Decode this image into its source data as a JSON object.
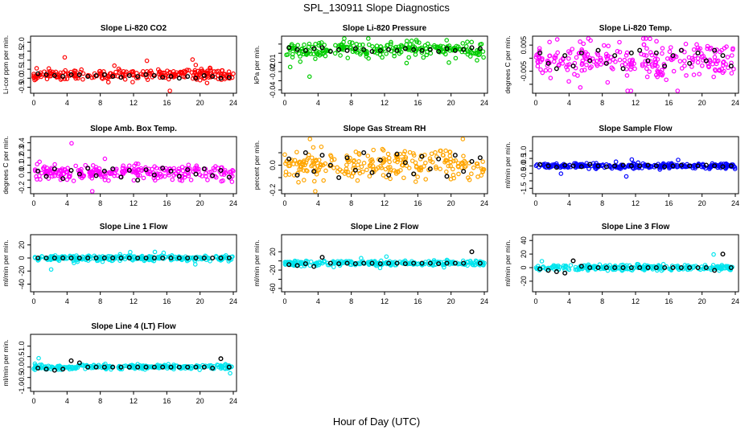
{
  "page_title": "SPL_130911  Slope Diagnostics",
  "shared_xlabel": "Hour of Day (UTC)",
  "chart_data": [
    {
      "type": "scatter",
      "title": "Slope Li-820 CO2",
      "ylabel": "Li-cor ppm per min.",
      "color": "#ff0000",
      "xlim": [
        0,
        24
      ],
      "ylim": [
        -0.7,
        2.2
      ],
      "xticks": [
        0,
        4,
        8,
        12,
        16,
        20,
        24
      ],
      "yticks": [
        -0.5,
        0.0,
        0.5,
        1.0,
        1.5,
        2.0
      ],
      "ytick_labels": [
        "-0.5",
        "0.0",
        "0.5",
        "1.0",
        "1.5",
        "2.0"
      ],
      "base": 0.2,
      "spread": 0.2,
      "black_y": [
        0.25,
        0.2,
        0.15,
        0.1,
        0.2,
        0.2,
        0.1,
        0.15,
        0.2,
        0.1,
        0.05,
        0.15,
        0.1,
        0.2,
        0.15,
        0.05,
        0.1,
        0.0,
        0.1,
        0.0,
        0.15,
        0.1,
        0.0,
        0.05
      ]
    },
    {
      "type": "scatter",
      "title": "Slope Li-820 Pressure",
      "ylabel": "kPa per min.",
      "color": "#00cc00",
      "xlim": [
        0,
        24
      ],
      "ylim": [
        -0.041,
        0.016
      ],
      "xticks": [
        0,
        4,
        8,
        12,
        16,
        20,
        24
      ],
      "yticks": [
        -0.04,
        -0.03,
        -0.02,
        -0.01,
        0.0,
        0.01
      ],
      "ytick_labels": [
        "-0.04",
        "",
        "-0.02",
        "-0.01",
        "",
        ""
      ],
      "base": 0.004,
      "spread": 0.006,
      "black_y": [
        0.006,
        0.004,
        0.003,
        0.005,
        0.006,
        0.002,
        0.004,
        0.003,
        0.005,
        0.004,
        0.002,
        0.003,
        0.004,
        0.003,
        0.005,
        0.004,
        0.003,
        0.004,
        0.002,
        0.005,
        0.003,
        0.004,
        0.006,
        0.005
      ]
    },
    {
      "type": "scatter",
      "title": "Slope Li-820 Temp.",
      "ylabel": "degrees C per min.",
      "color": "#ff00ff",
      "xlim": [
        0,
        24
      ],
      "ylim": [
        -0.0125,
        0.0075
      ],
      "xticks": [
        0,
        4,
        8,
        12,
        16,
        20,
        24
      ],
      "yticks": [
        -0.01,
        -0.005,
        0.0,
        0.005
      ],
      "ytick_labels": [
        "",
        "-0.005",
        "",
        "0.005"
      ],
      "base": -0.001,
      "spread": 0.005,
      "black_y": [
        0.002,
        -0.002,
        -0.004,
        0.001,
        -0.003,
        0.002,
        -0.001,
        0.003,
        -0.002,
        0.001,
        -0.004,
        0.002,
        0.003,
        -0.001,
        0.002,
        -0.003,
        0.001,
        0.003,
        -0.002,
        0.002,
        -0.001,
        0.003,
        0.001,
        -0.003
      ]
    },
    {
      "type": "scatter",
      "title": "Slope Amb. Box Temp.",
      "ylabel": "degrees C per min.",
      "color": "#ff00ff",
      "xlim": [
        0,
        24
      ],
      "ylim": [
        -0.25,
        0.45
      ],
      "xticks": [
        0,
        4,
        8,
        12,
        16,
        20,
        24
      ],
      "yticks": [
        -0.2,
        -0.1,
        0.0,
        0.1,
        0.2,
        0.3,
        0.4
      ],
      "ytick_labels": [
        "-0.2",
        "",
        "0.0",
        "0.1",
        "0.2",
        "0.3",
        "0.4"
      ],
      "base": 0.0,
      "spread": 0.08,
      "black_y": [
        0.02,
        -0.05,
        0.05,
        -0.08,
        0.03,
        -0.02,
        0.06,
        -0.04,
        0.02,
        0.05,
        -0.06,
        0.03,
        -0.1,
        0.04,
        -0.03,
        0.06,
        0.02,
        -0.05,
        0.04,
        -0.02,
        0.05,
        -0.04,
        0.03,
        -0.06
      ]
    },
    {
      "type": "scatter",
      "title": "Slope Gas Stream RH",
      "ylabel": "percent per min.",
      "color": "#ffa500",
      "xlim": [
        0,
        24
      ],
      "ylim": [
        -0.21,
        0.21
      ],
      "xticks": [
        0,
        4,
        8,
        12,
        16,
        20,
        24
      ],
      "yticks": [
        -0.2,
        -0.1,
        0.0,
        0.1
      ],
      "ytick_labels": [
        "-0.2",
        "",
        "0.0",
        ""
      ],
      "base": 0.0,
      "spread": 0.09,
      "black_y": [
        0.05,
        -0.08,
        0.1,
        -0.05,
        0.08,
        0.0,
        -0.1,
        0.06,
        -0.04,
        0.1,
        -0.06,
        0.04,
        -0.08,
        0.09,
        0.02,
        -0.07,
        0.07,
        -0.03,
        0.05,
        -0.09,
        0.08,
        -0.05,
        0.03,
        0.06
      ]
    },
    {
      "type": "scatter",
      "title": "Slope Sample Flow",
      "ylabel": "ml/min per min.",
      "color": "#0000ff",
      "xlim": [
        0,
        24
      ],
      "ylim": [
        -1.7,
        1.8
      ],
      "xticks": [
        0,
        4,
        8,
        12,
        16,
        20,
        24
      ],
      "yticks": [
        -1.5,
        -1.0,
        -0.5,
        0.0,
        0.5,
        1.0
      ],
      "ytick_labels": [
        "-1.5",
        "",
        "-0.5",
        "0.0",
        "0.5",
        "1.0"
      ],
      "base": 0.0,
      "spread": 0.12,
      "black_y": [
        0.1,
        0.0,
        -0.1,
        0.05,
        0.0,
        -0.05,
        0.1,
        0.0,
        -0.05,
        0.0,
        0.05,
        0.0,
        0.0,
        0.05,
        0.0,
        -0.05,
        0.0,
        0.05,
        0.0,
        0.0,
        0.05,
        0.0,
        -0.05,
        0.0
      ]
    },
    {
      "type": "scatter",
      "title": "Slope Line 1 Flow",
      "ylabel": "ml/min per min.",
      "color": "#00e5ee",
      "xlim": [
        0,
        24
      ],
      "ylim": [
        -48,
        32
      ],
      "xticks": [
        0,
        4,
        8,
        12,
        16,
        20,
        24
      ],
      "yticks": [
        -40,
        -20,
        0,
        20
      ],
      "ytick_labels": [
        "-40",
        "-20",
        "0",
        "20"
      ],
      "base": 0.0,
      "spread": 3,
      "black_y": [
        0,
        0,
        0,
        0,
        0,
        0,
        0,
        0,
        0,
        0,
        0,
        0,
        0,
        0,
        0,
        0,
        0,
        0,
        0,
        0,
        0,
        0,
        0,
        0
      ]
    },
    {
      "type": "scatter",
      "title": "Slope Line 2 Flow",
      "ylabel": "ml/min per min.",
      "color": "#00e5ee",
      "xlim": [
        0,
        24
      ],
      "ylim": [
        -62,
        52
      ],
      "xticks": [
        0,
        4,
        8,
        12,
        16,
        20,
        24
      ],
      "yticks": [
        -60,
        -40,
        -20,
        0,
        20
      ],
      "ytick_labels": [
        "-60",
        "",
        "-20",
        "",
        "20"
      ],
      "base": -5,
      "spread": 4,
      "black_y": [
        -8,
        -10,
        -6,
        -12,
        8,
        -5,
        -6,
        -5,
        -6,
        -5,
        -5,
        -6,
        -5,
        -5,
        -6,
        -5,
        -5,
        -5,
        -6,
        -5,
        -5,
        -5,
        20,
        -5
      ]
    },
    {
      "type": "scatter",
      "title": "Slope Line 3 Flow",
      "ylabel": "ml/min per min.",
      "color": "#00e5ee",
      "xlim": [
        0,
        24
      ],
      "ylim": [
        -32,
        45
      ],
      "xticks": [
        0,
        4,
        8,
        12,
        16,
        20,
        24
      ],
      "yticks": [
        -20,
        0,
        20,
        40
      ],
      "ytick_labels": [
        "-20",
        "0",
        "20",
        "40"
      ],
      "base": 0.0,
      "spread": 3,
      "black_y": [
        -2,
        -4,
        -6,
        -8,
        10,
        2,
        0,
        0,
        0,
        0,
        0,
        0,
        0,
        0,
        0,
        0,
        0,
        0,
        0,
        0,
        0,
        -4,
        20,
        0
      ]
    },
    {
      "type": "scatter",
      "title": "Slope Line 4 (LT) Flow",
      "ylabel": "ml/min per min.",
      "color": "#00e5ee",
      "xlim": [
        0,
        24
      ],
      "ylim": [
        -1.05,
        1.45
      ],
      "xticks": [
        0,
        4,
        8,
        12,
        16,
        20,
        24
      ],
      "yticks": [
        -1.0,
        -0.5,
        0.0,
        0.5,
        1.0
      ],
      "ytick_labels": [
        "-1.0",
        "-0.5",
        "0.0",
        "0.5",
        "1.0"
      ],
      "base": 0.0,
      "spread": 0.08,
      "black_y": [
        -0.05,
        -0.1,
        -0.15,
        -0.1,
        0.3,
        0.2,
        0.0,
        0.0,
        0.0,
        0.0,
        0.0,
        0.0,
        0.0,
        0.0,
        0.0,
        0.0,
        0.0,
        0.0,
        0.0,
        0.0,
        0.0,
        -0.05,
        0.4,
        0.0
      ]
    }
  ]
}
